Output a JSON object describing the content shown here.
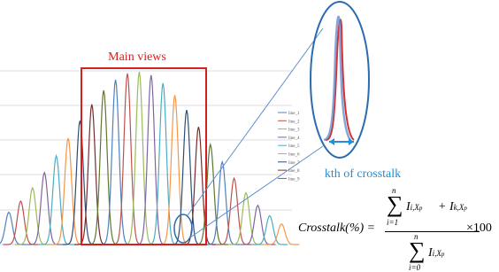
{
  "main_views_label": "Main views",
  "crosstalk_label": "kth of crosstalk",
  "legend": [
    "line_1",
    "line_2",
    "line_3",
    "line_4",
    "line_5",
    "line_6",
    "line_7",
    "line_8",
    "line_9"
  ],
  "formula": {
    "lhs": "Crosstalk(%) =",
    "sigma": "∑",
    "num_top": "n",
    "num_bottom": "i=1",
    "term": "I",
    "term_sub": "i,X",
    "term_subsub": "p",
    "plus": "+ I",
    "plus_sub": "k,X",
    "plus_subsub": "p",
    "den_top": "n",
    "den_bottom": "i=0",
    "times": "×100"
  }
}
